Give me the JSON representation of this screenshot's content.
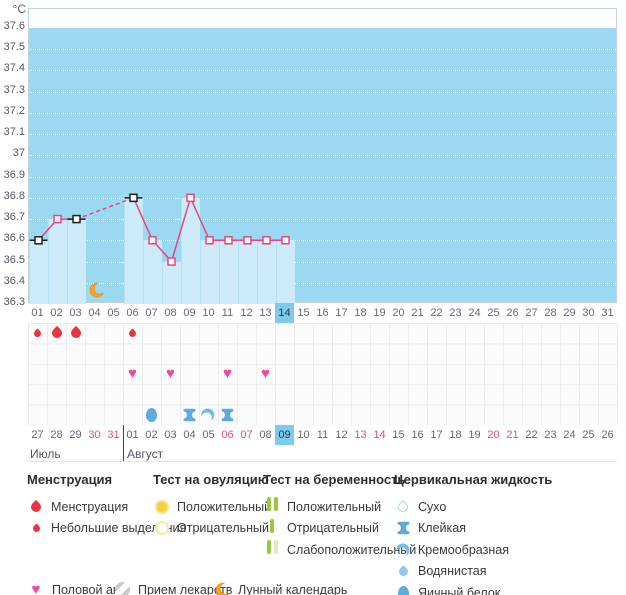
{
  "axis": {
    "unit": "°C",
    "ticks": [
      "37.6",
      "37.5",
      "37.4",
      "37.3",
      "37.2",
      "37.1",
      "37",
      "36.9",
      "36.8",
      "36.7",
      "36.6",
      "36.5",
      "36.4",
      "36.3"
    ]
  },
  "chart_data": {
    "type": "line",
    "ylabel": "°C",
    "ylim": [
      36.3,
      37.6
    ],
    "grid": "dotted horizontal, white on blue",
    "categories": [
      "01",
      "02",
      "03",
      "04",
      "05",
      "06",
      "07",
      "08",
      "09",
      "10",
      "11",
      "12",
      "13",
      "14",
      "15",
      "16",
      "17",
      "18",
      "19",
      "20",
      "21",
      "22",
      "23",
      "24",
      "25",
      "26",
      "27",
      "28",
      "29",
      "30",
      "31"
    ],
    "selected_cycle_day": "14",
    "series": [
      {
        "name": "basal-temperature",
        "points": [
          {
            "day": 1,
            "value": 36.6,
            "marker": "black"
          },
          {
            "day": 2,
            "value": 36.7,
            "marker": "pink"
          },
          {
            "day": 3,
            "value": 36.7,
            "marker": "black"
          },
          {
            "day": 6,
            "value": 36.8,
            "marker": "black"
          },
          {
            "day": 7,
            "value": 36.6,
            "marker": "pink"
          },
          {
            "day": 8,
            "value": 36.5,
            "marker": "pink"
          },
          {
            "day": 9,
            "value": 36.8,
            "marker": "pink"
          },
          {
            "day": 10,
            "value": 36.6,
            "marker": "pink"
          },
          {
            "day": 11,
            "value": 36.6,
            "marker": "pink"
          },
          {
            "day": 12,
            "value": 36.6,
            "marker": "pink"
          },
          {
            "day": 13,
            "value": 36.6,
            "marker": "pink"
          },
          {
            "day": 14,
            "value": 36.6,
            "marker": "pink"
          }
        ],
        "gap_style": "dashed between non-consecutive days"
      }
    ]
  },
  "events": {
    "row_order": [
      "menstruation",
      "ovulation-test",
      "intercourse",
      "medication",
      "cervical-fluid"
    ],
    "menstruation": [
      {
        "day": 1,
        "intensity": "spotting"
      },
      {
        "day": 2,
        "intensity": "full"
      },
      {
        "day": 3,
        "intensity": "full"
      },
      {
        "day": 6,
        "intensity": "spotting"
      }
    ],
    "intercourse_days": [
      6,
      8,
      11,
      13
    ],
    "cervical_fluid": [
      {
        "day": 7,
        "type": "egg-white"
      },
      {
        "day": 9,
        "type": "sticky"
      },
      {
        "day": 10,
        "type": "creamy"
      },
      {
        "day": 11,
        "type": "sticky"
      }
    ],
    "lunar": [
      {
        "day": 4
      }
    ]
  },
  "calendar": {
    "months": [
      {
        "label": "Июль",
        "dates": [
          "27",
          "28",
          "29",
          "30",
          "31"
        ],
        "red": [
          "30",
          "31"
        ],
        "selected": ""
      },
      {
        "label": "Август",
        "dates": [
          "01",
          "02",
          "03",
          "04",
          "05",
          "06",
          "07",
          "08",
          "09",
          "10",
          "11",
          "12",
          "13",
          "14",
          "15",
          "16",
          "17",
          "18",
          "19",
          "20",
          "21",
          "22",
          "23",
          "24",
          "25",
          "26"
        ],
        "red": [
          "06",
          "07",
          "13",
          "14",
          "20",
          "21"
        ],
        "selected": "09"
      }
    ]
  },
  "legend": {
    "sections": [
      {
        "title": "Менструация",
        "items": [
          {
            "icon": "drop-big",
            "label": "Менструация"
          },
          {
            "icon": "drop-small",
            "label": "Небольшие выделения"
          }
        ]
      },
      {
        "title": "Тест на овуляцию",
        "items": [
          {
            "icon": "circle-yellow-filled",
            "label": "Положительный"
          },
          {
            "icon": "circle-yellow-outline",
            "label": "Отрицательный"
          }
        ]
      },
      {
        "title": "Тест на беременность",
        "items": [
          {
            "icon": "bars-two-green",
            "label": "Положительный"
          },
          {
            "icon": "bar-one-green",
            "label": "Отрицательный"
          },
          {
            "icon": "bars-green-pale",
            "label": "Слабоположительный"
          }
        ]
      },
      {
        "title": "Цервикальная жидкость",
        "items": [
          {
            "icon": "droplet-outline",
            "label": "Сухо"
          },
          {
            "icon": "sticky",
            "label": "Клейкая"
          },
          {
            "icon": "creamy",
            "label": "Кремообразная"
          },
          {
            "icon": "droplet-filled",
            "label": "Водянистая"
          },
          {
            "icon": "egg-white",
            "label": "Яичный белок"
          }
        ]
      }
    ],
    "extra": [
      {
        "icon": "heart",
        "label": "Половой акт"
      },
      {
        "icon": "pill",
        "label": "Прием лекарств"
      },
      {
        "icon": "moon",
        "label": "Лунный календарь"
      }
    ]
  },
  "colors": {
    "plot_blue": "#9bd9f3",
    "bar_blue": "#cdeaf9",
    "highlight_blue": "#7ccaec",
    "line_pink": "#e8447f",
    "marker_black": "#1f1f1f",
    "drop_red": "#e8353f",
    "heart_pink": "#f247a4",
    "red_date": "#e0507e",
    "cervical_blue": "#5fabdc",
    "cervical_light": "#8fcbf0",
    "moon_orange": "#f6a21d",
    "test_green": "#9cc83d",
    "test_pale": "#dfe9c2",
    "ovul_yellow": "#f6cf3f",
    "ovul_pale": "#f6e7a9"
  }
}
